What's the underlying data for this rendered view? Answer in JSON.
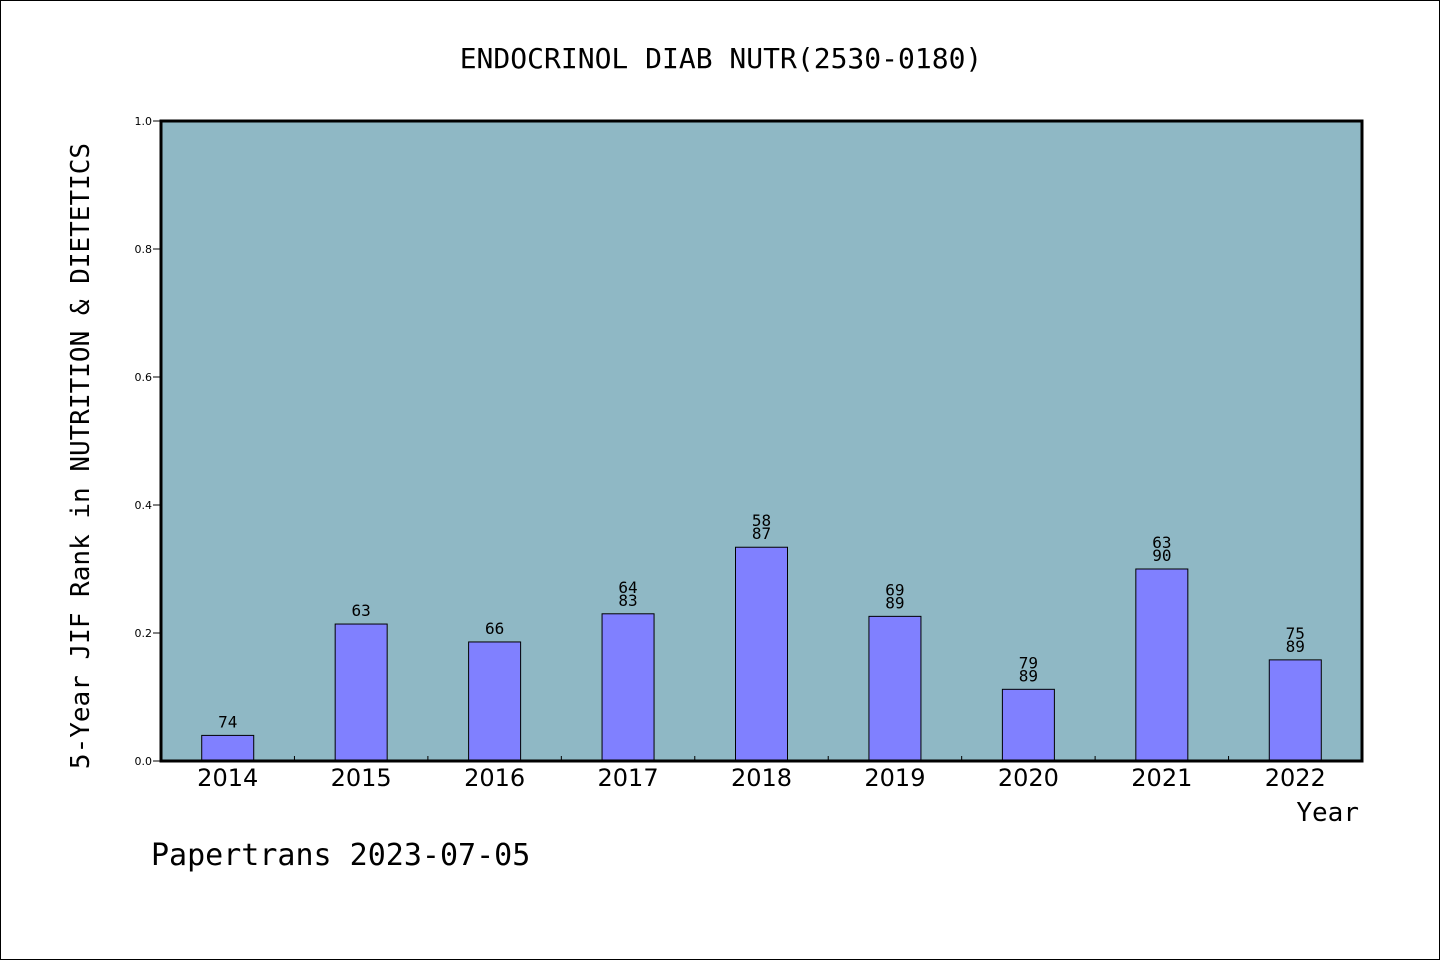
{
  "chart_data": {
    "type": "bar",
    "title": "ENDOCRINOL DIAB NUTR(2530-0180)",
    "xlabel": "Year",
    "ylabel": "5-Year JIF Rank in NUTRITION & DIETETICS",
    "footer": "Papertrans 2023-07-05",
    "categories": [
      "2014",
      "2015",
      "2016",
      "2017",
      "2018",
      "2019",
      "2020",
      "2021",
      "2022"
    ],
    "values": [
      0.04,
      0.214,
      0.186,
      0.23,
      0.334,
      0.226,
      0.112,
      0.3,
      0.158
    ],
    "bar_labels": [
      [
        "74"
      ],
      [
        "63"
      ],
      [
        "66"
      ],
      [
        "64",
        "83"
      ],
      [
        "58",
        "87"
      ],
      [
        "69",
        "89"
      ],
      [
        "79",
        "89"
      ],
      [
        "63",
        "90"
      ],
      [
        "75",
        "89"
      ]
    ],
    "ylim": [
      0.0,
      1.0
    ],
    "yticks": [
      "0.0",
      "0.2",
      "0.4",
      "0.6",
      "0.8",
      "1.0"
    ],
    "grid": false,
    "colors": {
      "plot_background": "#8fb8c5",
      "bar_fill": "#8080ff",
      "bar_stroke": "#000000"
    }
  }
}
